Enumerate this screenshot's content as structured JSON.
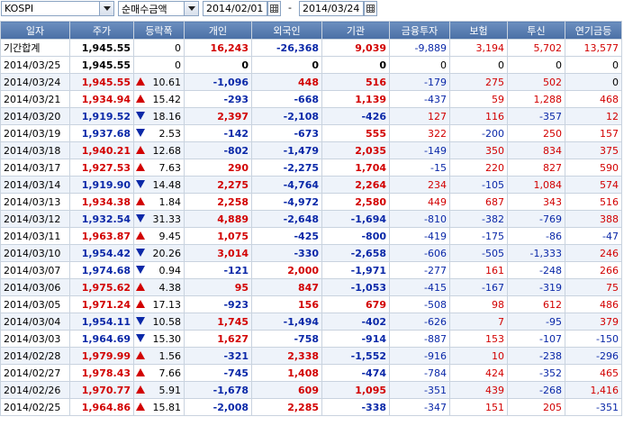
{
  "toolbar": {
    "market": "KOSPI",
    "mode": "순매수금액",
    "start_date": "2014/02/01",
    "separator": "-",
    "end_date": "2014/03/24"
  },
  "columns": [
    "일자",
    "주가",
    "등락폭",
    "개인",
    "외국인",
    "기관",
    "금융투자",
    "보험",
    "투신",
    "연기금등"
  ],
  "rows": [
    {
      "date": "기간합계",
      "price": "1,945.55",
      "dir": "none",
      "chg": "0",
      "indiv": "16,243",
      "foreign": "-26,368",
      "inst": "9,039",
      "fin": "-9,889",
      "ins": "3,194",
      "trust": "5,702",
      "pension": "13,577",
      "total": true
    },
    {
      "date": "2014/03/25",
      "price": "1,945.55",
      "dir": "none",
      "chg": "0",
      "indiv": "0",
      "foreign": "0",
      "inst": "0",
      "fin": "0",
      "ins": "0",
      "trust": "0",
      "pension": "0"
    },
    {
      "date": "2014/03/24",
      "price": "1,945.55",
      "dir": "up",
      "chg": "10.61",
      "indiv": "-1,096",
      "foreign": "448",
      "inst": "516",
      "fin": "-179",
      "ins": "275",
      "trust": "502",
      "pension": "0"
    },
    {
      "date": "2014/03/21",
      "price": "1,934.94",
      "dir": "up",
      "chg": "15.42",
      "indiv": "-293",
      "foreign": "-668",
      "inst": "1,139",
      "fin": "-437",
      "ins": "59",
      "trust": "1,288",
      "pension": "468"
    },
    {
      "date": "2014/03/20",
      "price": "1,919.52",
      "dir": "down",
      "chg": "18.16",
      "indiv": "2,397",
      "foreign": "-2,108",
      "inst": "-426",
      "fin": "127",
      "ins": "116",
      "trust": "-357",
      "pension": "12"
    },
    {
      "date": "2014/03/19",
      "price": "1,937.68",
      "dir": "down",
      "chg": "2.53",
      "indiv": "-142",
      "foreign": "-673",
      "inst": "555",
      "fin": "322",
      "ins": "-200",
      "trust": "250",
      "pension": "157"
    },
    {
      "date": "2014/03/18",
      "price": "1,940.21",
      "dir": "up",
      "chg": "12.68",
      "indiv": "-802",
      "foreign": "-1,479",
      "inst": "2,035",
      "fin": "-149",
      "ins": "350",
      "trust": "834",
      "pension": "375"
    },
    {
      "date": "2014/03/17",
      "price": "1,927.53",
      "dir": "up",
      "chg": "7.63",
      "indiv": "290",
      "foreign": "-2,275",
      "inst": "1,704",
      "fin": "-15",
      "ins": "220",
      "trust": "827",
      "pension": "590"
    },
    {
      "date": "2014/03/14",
      "price": "1,919.90",
      "dir": "down",
      "chg": "14.48",
      "indiv": "2,275",
      "foreign": "-4,764",
      "inst": "2,264",
      "fin": "234",
      "ins": "-105",
      "trust": "1,084",
      "pension": "574"
    },
    {
      "date": "2014/03/13",
      "price": "1,934.38",
      "dir": "up",
      "chg": "1.84",
      "indiv": "2,258",
      "foreign": "-4,972",
      "inst": "2,580",
      "fin": "449",
      "ins": "687",
      "trust": "343",
      "pension": "516"
    },
    {
      "date": "2014/03/12",
      "price": "1,932.54",
      "dir": "down",
      "chg": "31.33",
      "indiv": "4,889",
      "foreign": "-2,648",
      "inst": "-1,694",
      "fin": "-810",
      "ins": "-382",
      "trust": "-769",
      "pension": "388"
    },
    {
      "date": "2014/03/11",
      "price": "1,963.87",
      "dir": "up",
      "chg": "9.45",
      "indiv": "1,075",
      "foreign": "-425",
      "inst": "-800",
      "fin": "-419",
      "ins": "-175",
      "trust": "-86",
      "pension": "-47"
    },
    {
      "date": "2014/03/10",
      "price": "1,954.42",
      "dir": "down",
      "chg": "20.26",
      "indiv": "3,014",
      "foreign": "-330",
      "inst": "-2,658",
      "fin": "-606",
      "ins": "-505",
      "trust": "-1,333",
      "pension": "246"
    },
    {
      "date": "2014/03/07",
      "price": "1,974.68",
      "dir": "down",
      "chg": "0.94",
      "indiv": "-121",
      "foreign": "2,000",
      "inst": "-1,971",
      "fin": "-277",
      "ins": "161",
      "trust": "-248",
      "pension": "266"
    },
    {
      "date": "2014/03/06",
      "price": "1,975.62",
      "dir": "up",
      "chg": "4.38",
      "indiv": "95",
      "foreign": "847",
      "inst": "-1,053",
      "fin": "-415",
      "ins": "-167",
      "trust": "-319",
      "pension": "75"
    },
    {
      "date": "2014/03/05",
      "price": "1,971.24",
      "dir": "up",
      "chg": "17.13",
      "indiv": "-923",
      "foreign": "156",
      "inst": "679",
      "fin": "-508",
      "ins": "98",
      "trust": "612",
      "pension": "486"
    },
    {
      "date": "2014/03/04",
      "price": "1,954.11",
      "dir": "down",
      "chg": "10.58",
      "indiv": "1,745",
      "foreign": "-1,494",
      "inst": "-402",
      "fin": "-626",
      "ins": "7",
      "trust": "-95",
      "pension": "379"
    },
    {
      "date": "2014/03/03",
      "price": "1,964.69",
      "dir": "down",
      "chg": "15.30",
      "indiv": "1,627",
      "foreign": "-758",
      "inst": "-914",
      "fin": "-887",
      "ins": "153",
      "trust": "-107",
      "pension": "-150"
    },
    {
      "date": "2014/02/28",
      "price": "1,979.99",
      "dir": "up",
      "chg": "1.56",
      "indiv": "-321",
      "foreign": "2,338",
      "inst": "-1,552",
      "fin": "-916",
      "ins": "10",
      "trust": "-238",
      "pension": "-296"
    },
    {
      "date": "2014/02/27",
      "price": "1,978.43",
      "dir": "up",
      "chg": "7.66",
      "indiv": "-745",
      "foreign": "1,408",
      "inst": "-474",
      "fin": "-784",
      "ins": "424",
      "trust": "-352",
      "pension": "465"
    },
    {
      "date": "2014/02/26",
      "price": "1,970.77",
      "dir": "up",
      "chg": "5.91",
      "indiv": "-1,678",
      "foreign": "609",
      "inst": "1,095",
      "fin": "-351",
      "ins": "439",
      "trust": "-268",
      "pension": "1,416"
    },
    {
      "date": "2014/02/25",
      "price": "1,964.86",
      "dir": "up",
      "chg": "15.81",
      "indiv": "-2,008",
      "foreign": "2,285",
      "inst": "-338",
      "fin": "-347",
      "ins": "151",
      "trust": "205",
      "pension": "-351"
    }
  ],
  "colors": {
    "up": "#d20000",
    "down": "#0a28a8",
    "header": "#4a6fa5"
  }
}
